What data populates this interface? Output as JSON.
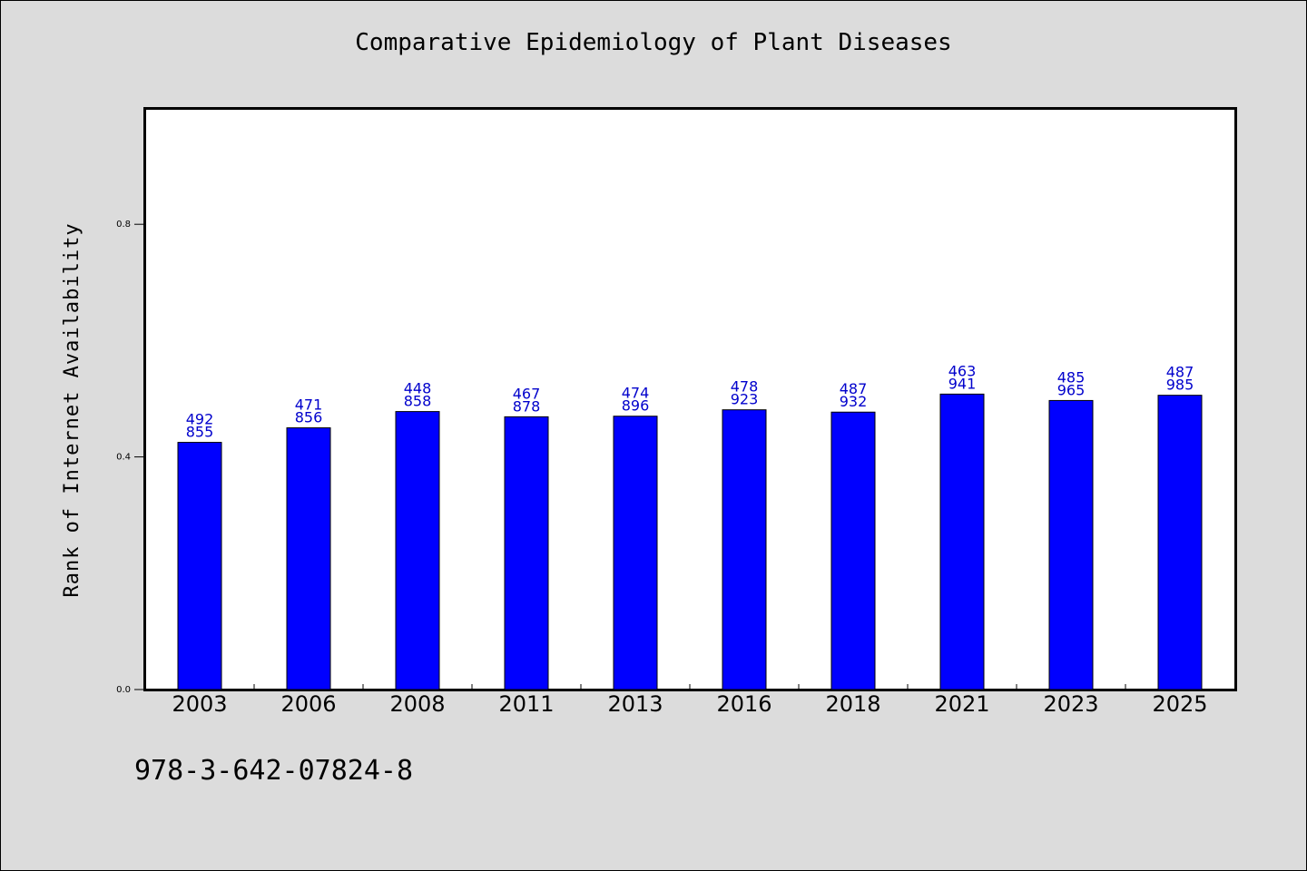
{
  "chart_data": {
    "type": "bar",
    "title": "Comparative Epidemiology of Plant Diseases",
    "xlabel": "",
    "ylabel": "Rank of Internet Availability",
    "categories": [
      "2003",
      "2006",
      "2008",
      "2011",
      "2013",
      "2016",
      "2018",
      "2021",
      "2023",
      "2025"
    ],
    "values": [
      0.425,
      0.45,
      0.478,
      0.469,
      0.47,
      0.481,
      0.477,
      0.508,
      0.497,
      0.506
    ],
    "data_labels": [
      [
        "492",
        "855"
      ],
      [
        "471",
        "856"
      ],
      [
        "448",
        "858"
      ],
      [
        "467",
        "878"
      ],
      [
        "474",
        "896"
      ],
      [
        "478",
        "923"
      ],
      [
        "487",
        "932"
      ],
      [
        "463",
        "941"
      ],
      [
        "485",
        "965"
      ],
      [
        "487",
        "985"
      ]
    ],
    "ylim": [
      0,
      1.0
    ],
    "yticks": [
      "0.0",
      "0.4",
      "0.8"
    ],
    "ytick_values": [
      0.0,
      0.4,
      0.8
    ],
    "grid": false,
    "legend": "none",
    "colors": {
      "bar": "#0000ff",
      "label": "#0000cc",
      "background": "#dcdcdc",
      "plot": "#ffffff"
    }
  },
  "footer": {
    "isbn": "978-3-642-07824-8"
  }
}
